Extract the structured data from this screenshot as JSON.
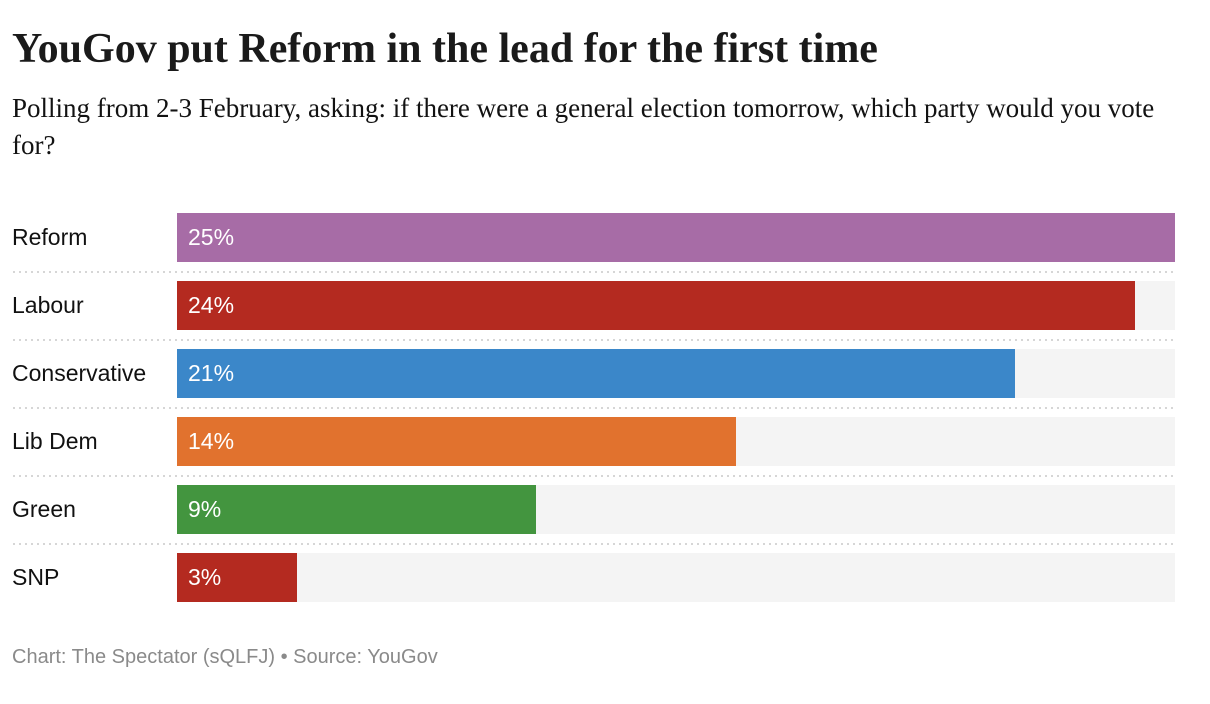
{
  "header": {
    "title": "YouGov put Reform in the lead for the first time",
    "subtitle": "Polling from 2-3 February, asking: if there were a general election tomorrow, which party would you vote for?"
  },
  "chart_data": {
    "type": "bar",
    "orientation": "horizontal",
    "title": "YouGov put Reform in the lead for the first time",
    "subtitle": "Polling from 2-3 February, asking: if there were a general election tomorrow, which party would you vote for?",
    "categories": [
      "Reform",
      "Labour",
      "Conservative",
      "Lib Dem",
      "Green",
      "SNP"
    ],
    "values": [
      25,
      24,
      21,
      14,
      9,
      3
    ],
    "value_labels": [
      "25%",
      "24%",
      "21%",
      "14%",
      "9%",
      "3%"
    ],
    "bar_colors": [
      "#a76ca6",
      "#b42a20",
      "#3b87c9",
      "#e1722e",
      "#43953f",
      "#b42a20"
    ],
    "track_color": "#f4f4f4",
    "xlim": [
      0,
      25
    ],
    "xlabel": "",
    "ylabel": "",
    "grid": false,
    "legend": "none",
    "value_label_position": "inside-left"
  },
  "footer": {
    "text": "Chart: The Spectator (sQLFJ) • Source: YouGov"
  }
}
